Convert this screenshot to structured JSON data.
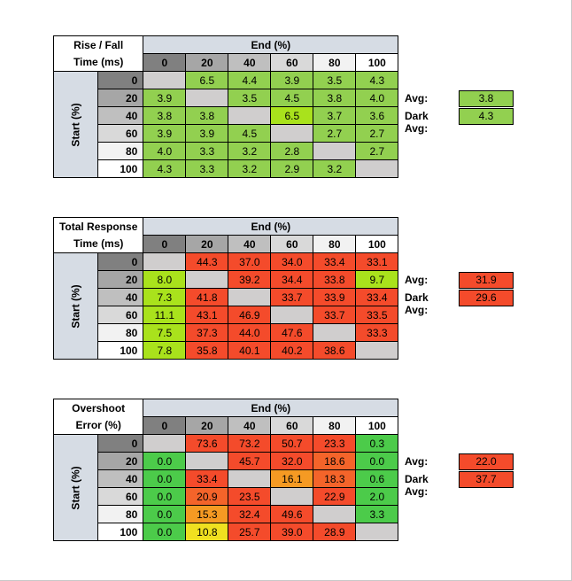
{
  "colors": {
    "header_gray_0": "#808080",
    "header_gray_20": "#a6a6a6",
    "header_gray_40": "#bfbfbf",
    "header_gray_60": "#d9d9d9",
    "header_gray_80": "#f2f2f2",
    "header_gray_100": "#ffffff",
    "blue_header": "#d6dce4",
    "empty": "#d0cece",
    "green": "#92d050",
    "lime": "#a9e21c",
    "bright_green": "#4ccb4a",
    "red": "#f44b2b",
    "orange_red": "#f4642a",
    "orange": "#f59a23",
    "yellow": "#f0e020"
  },
  "tables": [
    {
      "corner_line1": "Rise / Fall",
      "corner_line2": "Time (ms)",
      "end_label": "End (%)",
      "start_label": "Start (%)",
      "columns": [
        "0",
        "20",
        "40",
        "60",
        "80",
        "100"
      ],
      "rows": [
        {
          "label": "0",
          "values": [
            "",
            "6.5",
            "4.4",
            "3.9",
            "3.5",
            "4.3"
          ],
          "colors": [
            "empty",
            "green",
            "green",
            "green",
            "green",
            "green"
          ]
        },
        {
          "label": "20",
          "values": [
            "3.9",
            "",
            "3.5",
            "4.5",
            "3.8",
            "4.0"
          ],
          "colors": [
            "green",
            "empty",
            "green",
            "green",
            "green",
            "green"
          ]
        },
        {
          "label": "40",
          "values": [
            "3.8",
            "3.8",
            "",
            "6.5",
            "3.7",
            "3.6"
          ],
          "colors": [
            "green",
            "green",
            "empty",
            "lime",
            "green",
            "green"
          ]
        },
        {
          "label": "60",
          "values": [
            "3.9",
            "3.9",
            "4.5",
            "",
            "2.7",
            "2.7"
          ],
          "colors": [
            "green",
            "green",
            "green",
            "empty",
            "green",
            "green"
          ]
        },
        {
          "label": "80",
          "values": [
            "4.0",
            "3.3",
            "3.2",
            "2.8",
            "",
            "2.7"
          ],
          "colors": [
            "green",
            "green",
            "green",
            "green",
            "empty",
            "green"
          ]
        },
        {
          "label": "100",
          "values": [
            "4.3",
            "3.3",
            "3.2",
            "2.9",
            "3.2",
            ""
          ],
          "colors": [
            "green",
            "green",
            "green",
            "green",
            "green",
            "empty"
          ]
        }
      ],
      "avg_label": "Avg:",
      "avg_value": "3.8",
      "avg_color": "green",
      "dark_avg_label": "Dark Avg:",
      "dark_avg_value": "4.3",
      "dark_avg_color": "green"
    },
    {
      "corner_line1": "Total Response",
      "corner_line2": "Time (ms)",
      "end_label": "End (%)",
      "start_label": "Start (%)",
      "columns": [
        "0",
        "20",
        "40",
        "60",
        "80",
        "100"
      ],
      "rows": [
        {
          "label": "0",
          "values": [
            "",
            "44.3",
            "37.0",
            "34.0",
            "33.4",
            "33.1"
          ],
          "colors": [
            "empty",
            "red",
            "red",
            "red",
            "red",
            "red"
          ]
        },
        {
          "label": "20",
          "values": [
            "8.0",
            "",
            "39.2",
            "34.4",
            "33.8",
            "9.7"
          ],
          "colors": [
            "lime",
            "empty",
            "red",
            "red",
            "red",
            "lime"
          ]
        },
        {
          "label": "40",
          "values": [
            "7.3",
            "41.8",
            "",
            "33.7",
            "33.9",
            "33.4"
          ],
          "colors": [
            "lime",
            "red",
            "empty",
            "red",
            "red",
            "red"
          ]
        },
        {
          "label": "60",
          "values": [
            "11.1",
            "43.1",
            "46.9",
            "",
            "33.7",
            "33.5"
          ],
          "colors": [
            "lime",
            "red",
            "red",
            "empty",
            "red",
            "red"
          ]
        },
        {
          "label": "80",
          "values": [
            "7.5",
            "37.3",
            "44.0",
            "47.6",
            "",
            "33.3"
          ],
          "colors": [
            "lime",
            "red",
            "red",
            "red",
            "empty",
            "red"
          ]
        },
        {
          "label": "100",
          "values": [
            "7.8",
            "35.8",
            "40.1",
            "40.2",
            "38.6",
            ""
          ],
          "colors": [
            "lime",
            "red",
            "red",
            "red",
            "red",
            "empty"
          ]
        }
      ],
      "avg_label": "Avg:",
      "avg_value": "31.9",
      "avg_color": "red",
      "dark_avg_label": "Dark Avg:",
      "dark_avg_value": "29.6",
      "dark_avg_color": "red"
    },
    {
      "corner_line1": "Overshoot",
      "corner_line2": "Error (%)",
      "end_label": "End (%)",
      "start_label": "Start (%)",
      "columns": [
        "0",
        "20",
        "40",
        "60",
        "80",
        "100"
      ],
      "rows": [
        {
          "label": "0",
          "values": [
            "",
            "73.6",
            "73.2",
            "50.7",
            "23.3",
            "0.3"
          ],
          "colors": [
            "empty",
            "red",
            "red",
            "red",
            "red",
            "bright_green"
          ]
        },
        {
          "label": "20",
          "values": [
            "0.0",
            "",
            "45.7",
            "32.0",
            "18.6",
            "0.0"
          ],
          "colors": [
            "bright_green",
            "empty",
            "red",
            "red",
            "orange_red",
            "bright_green"
          ]
        },
        {
          "label": "40",
          "values": [
            "0.0",
            "33.4",
            "",
            "16.1",
            "18.3",
            "0.6"
          ],
          "colors": [
            "bright_green",
            "red",
            "empty",
            "orange",
            "orange_red",
            "bright_green"
          ]
        },
        {
          "label": "60",
          "values": [
            "0.0",
            "20.9",
            "23.5",
            "",
            "22.9",
            "2.0"
          ],
          "colors": [
            "bright_green",
            "orange_red",
            "red",
            "empty",
            "red",
            "bright_green"
          ]
        },
        {
          "label": "80",
          "values": [
            "0.0",
            "15.3",
            "32.4",
            "49.6",
            "",
            "3.3"
          ],
          "colors": [
            "bright_green",
            "orange",
            "red",
            "red",
            "empty",
            "bright_green"
          ]
        },
        {
          "label": "100",
          "values": [
            "0.0",
            "10.8",
            "25.7",
            "39.0",
            "28.9",
            ""
          ],
          "colors": [
            "bright_green",
            "yellow",
            "red",
            "red",
            "red",
            "empty"
          ]
        }
      ],
      "avg_label": "Avg:",
      "avg_value": "22.0",
      "avg_color": "red",
      "dark_avg_label": "Dark Avg:",
      "dark_avg_value": "37.7",
      "dark_avg_color": "red"
    }
  ]
}
